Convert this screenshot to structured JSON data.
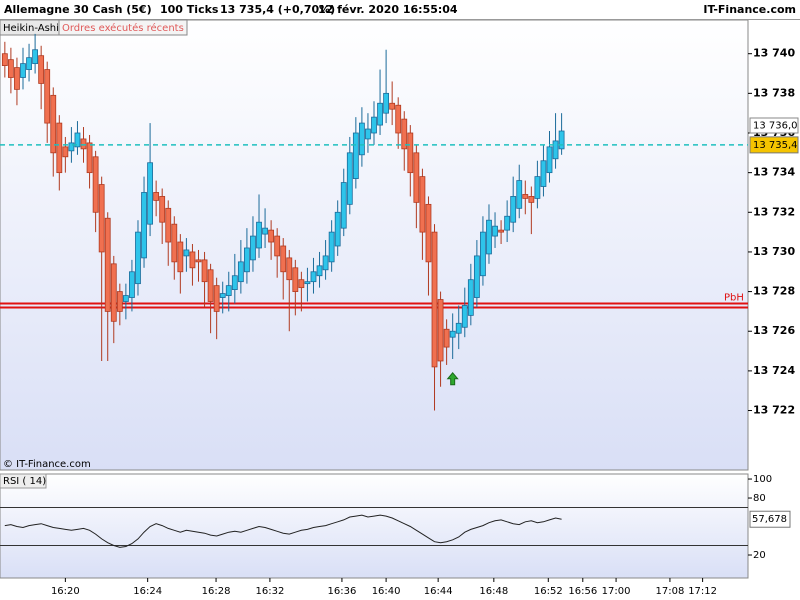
{
  "header": {
    "instrument": "Allemagne 30 Cash (5€)",
    "interval": "100 Ticks",
    "last": "13 735,4 (+0,70%)",
    "datetime": "12 févr. 2020 16:55:04",
    "brand": "IT-Finance.com"
  },
  "tabs": [
    "Heikin-Ashi",
    "Ordres exécutés récents"
  ],
  "watermark": "© IT-Finance.com",
  "chart_data": [
    {
      "type": "candlestick",
      "up_color": "#2ec4ea",
      "down_color": "#f07050",
      "up_border": "#1b6b9a",
      "down_border": "#b03a20",
      "open": [
        13740.0,
        13739.7,
        13739.3,
        13738.8,
        13739.2,
        13739.5,
        13739.9,
        13739.2,
        13737.9,
        13736.5,
        13735.3,
        13735.1,
        13735.3,
        13735.7,
        13735.5,
        13734.8,
        13733.4,
        13731.7,
        13729.4,
        13728.0,
        13727.5,
        13727.7,
        13728.4,
        13729.7,
        13731.4,
        13733.0,
        13732.8,
        13732.2,
        13731.4,
        13730.5,
        13729.8,
        13730.0,
        13729.6,
        13729.6,
        13729.1,
        13728.3,
        13727.7,
        13727.8,
        13728.1,
        13728.5,
        13729.0,
        13729.6,
        13730.2,
        13730.9,
        13731.1,
        13730.8,
        13730.3,
        13729.7,
        13729.2,
        13728.6,
        13728.4,
        13728.5,
        13728.8,
        13729.1,
        13729.5,
        13730.3,
        13731.2,
        13732.4,
        13733.7,
        13734.9,
        13735.7,
        13736.0,
        13736.4,
        13737.0,
        13737.5,
        13737.4,
        13736.7,
        13736.0,
        13735.0,
        13733.8,
        13732.4,
        13731.0,
        13727.6,
        13726.1,
        13725.7,
        13725.9,
        13726.2,
        13726.8,
        13727.7,
        13728.8,
        13729.9,
        13730.8,
        13731.1,
        13731.1,
        13731.5,
        13732.2,
        13732.9,
        13732.8,
        13732.7,
        13733.3,
        13734.0,
        13734.7,
        13735.2
      ],
      "high": [
        13740.6,
        13740.3,
        13739.8,
        13740.3,
        13740.5,
        13741.0,
        13740.4,
        13739.6,
        13738.3,
        13736.9,
        13735.8,
        13736.3,
        13736.6,
        13736.3,
        13735.9,
        13735.1,
        13733.8,
        13732.0,
        13729.8,
        13728.4,
        13728.4,
        13729.6,
        13731.6,
        13733.8,
        13736.5,
        13733.6,
        13733.2,
        13732.6,
        13731.8,
        13730.9,
        13730.7,
        13730.4,
        13730.1,
        13730.0,
        13729.4,
        13728.7,
        13728.5,
        13729.0,
        13729.9,
        13730.6,
        13731.2,
        13731.8,
        13732.9,
        13732.2,
        13731.6,
        13731.2,
        13730.7,
        13730.1,
        13729.6,
        13729.0,
        13729.2,
        13729.7,
        13730.0,
        13730.6,
        13731.6,
        13732.6,
        13734.2,
        13735.8,
        13736.8,
        13737.3,
        13737.0,
        13737.6,
        13739.2,
        13740.2,
        13738.6,
        13737.8,
        13737.1,
        13736.4,
        13735.4,
        13734.2,
        13732.8,
        13731.4,
        13728.0,
        13726.6,
        13726.9,
        13727.3,
        13728.2,
        13729.4,
        13730.6,
        13731.8,
        13732.4,
        13732.0,
        13731.6,
        13732.6,
        13733.8,
        13734.4,
        13733.6,
        13733.3,
        13734.6,
        13735.4,
        13736.1,
        13737.0,
        13737.0
      ],
      "low": [
        13738.8,
        13738.0,
        13737.4,
        13738.2,
        13738.6,
        13739.0,
        13737.2,
        13735.5,
        13733.8,
        13733.1,
        13734.0,
        13734.5,
        13734.9,
        13734.5,
        13733.2,
        13731.0,
        13724.5,
        13724.5,
        13725.4,
        13726.3,
        13726.6,
        13727.0,
        13727.8,
        13729.2,
        13730.8,
        13731.8,
        13730.4,
        13729.3,
        13728.6,
        13727.9,
        13729.0,
        13728.3,
        13728.5,
        13727.2,
        13725.9,
        13725.6,
        13726.9,
        13727.0,
        13727.4,
        13727.9,
        13728.4,
        13729.0,
        13729.7,
        13730.2,
        13729.6,
        13728.7,
        13727.6,
        13726.0,
        13726.8,
        13727.0,
        13727.5,
        13727.9,
        13728.2,
        13728.6,
        13729.0,
        13729.8,
        13730.8,
        13731.9,
        13733.2,
        13734.3,
        13735.0,
        13735.4,
        13735.9,
        13736.5,
        13736.4,
        13735.2,
        13734.1,
        13732.8,
        13731.2,
        13729.6,
        13727.8,
        13722.0,
        13723.2,
        13724.3,
        13724.6,
        13725.1,
        13725.7,
        13726.3,
        13727.2,
        13728.3,
        13729.4,
        13730.2,
        13730.4,
        13730.5,
        13731.0,
        13731.7,
        13731.9,
        13730.9,
        13732.2,
        13732.8,
        13733.5,
        13734.2,
        13734.9
      ],
      "close": [
        13739.4,
        13738.8,
        13738.2,
        13739.5,
        13739.8,
        13740.2,
        13738.5,
        13736.5,
        13735,
        13734,
        13734.8,
        13735.5,
        13736,
        13735.2,
        13734,
        13732,
        13730,
        13727,
        13726.5,
        13727,
        13727.8,
        13729,
        13731,
        13733,
        13734.5,
        13732.6,
        13731.5,
        13730.5,
        13729.5,
        13729,
        13730.1,
        13729.2,
        13729.5,
        13728.5,
        13727.5,
        13727,
        13727.9,
        13728.3,
        13728.8,
        13729.5,
        13730.2,
        13730.8,
        13731.5,
        13731.2,
        13730.5,
        13729.8,
        13729,
        13728.6,
        13728,
        13728.2,
        13728.5,
        13729,
        13729.3,
        13729.8,
        13731,
        13732,
        13733.5,
        13735,
        13736,
        13736.5,
        13736.2,
        13736.8,
        13737.5,
        13738,
        13737.2,
        13736,
        13735.2,
        13734,
        13732.5,
        13731,
        13729.5,
        13724.2,
        13724.5,
        13725.2,
        13726.0,
        13726.4,
        13727.3,
        13728.6,
        13729.8,
        13731,
        13731.6,
        13731.3,
        13731,
        13731.8,
        13732.8,
        13733.6,
        13732.7,
        13732.5,
        13733.8,
        13734.6,
        13735.3,
        13735.6,
        13736.1
      ],
      "xlim": [
        -0.8,
        122.8
      ],
      "xticks": [
        {
          "value": 10,
          "label": "16:20"
        },
        {
          "value": 23.6,
          "label": "16:24"
        },
        {
          "value": 34.9,
          "label": "16:28"
        },
        {
          "value": 43.8,
          "label": "16:32"
        },
        {
          "value": 55.7,
          "label": "16:36"
        },
        {
          "value": 63,
          "label": "16:40"
        },
        {
          "value": 71.6,
          "label": "16:44"
        },
        {
          "value": 80.8,
          "label": "16:48"
        },
        {
          "value": 89.8,
          "label": "16:52"
        },
        {
          "value": 95.5,
          "label": "16:56"
        },
        {
          "value": 101,
          "label": "17:00"
        },
        {
          "value": 109.9,
          "label": "17:08"
        },
        {
          "value": 115.3,
          "label": "17:12"
        }
      ],
      "ylim": [
        13719,
        13741.7
      ],
      "yticks": [
        {
          "value": 13722,
          "label": "13 722"
        },
        {
          "value": 13724,
          "label": "13 724"
        },
        {
          "value": 13726,
          "label": "13 726"
        },
        {
          "value": 13728,
          "label": "13 728"
        },
        {
          "value": 13730,
          "label": "13 730"
        },
        {
          "value": 13732,
          "label": "13 732"
        },
        {
          "value": 13734,
          "label": "13 734"
        },
        {
          "value": 13736,
          "label": "13 736"
        },
        {
          "value": 13738,
          "label": "13 738"
        },
        {
          "value": 13740,
          "label": "13 740"
        }
      ],
      "grid": false,
      "high_marker": {
        "value": 13736.0,
        "label": "13 736,0"
      },
      "current_price": {
        "value": 13735.4,
        "label": "13 735,4",
        "color": "#1fbfbf"
      },
      "level": {
        "value": 13727.3,
        "label": "PbH",
        "color": "#e01010"
      },
      "signal": {
        "x": 74,
        "y": 13723.6,
        "color": "#2ea82e"
      }
    },
    {
      "type": "line",
      "title": "RSI ( 14)",
      "color": "#222222",
      "values": [
        51,
        52,
        50,
        49,
        51,
        52,
        53,
        51,
        49,
        48,
        47,
        46,
        47,
        48,
        46,
        42,
        37,
        33,
        30,
        28,
        29,
        32,
        37,
        44,
        50,
        53,
        51,
        48,
        46,
        44,
        46,
        45,
        44,
        43,
        41,
        40,
        42,
        44,
        45,
        44,
        46,
        48,
        50,
        49,
        47,
        45,
        43,
        42,
        44,
        46,
        47,
        49,
        50,
        51,
        53,
        55,
        57,
        60,
        61,
        62,
        60,
        61,
        62,
        61,
        59,
        56,
        53,
        50,
        46,
        42,
        38,
        34,
        33,
        34,
        36,
        39,
        44,
        47,
        49,
        51,
        54,
        56,
        57,
        55,
        53,
        52,
        55,
        56,
        54,
        55,
        57,
        59,
        57.678
      ],
      "last_value_label": "57,678",
      "ylim": [
        -4.2,
        105.3
      ],
      "yticks": [
        20,
        80,
        100
      ],
      "levels": [
        30,
        70
      ]
    }
  ]
}
